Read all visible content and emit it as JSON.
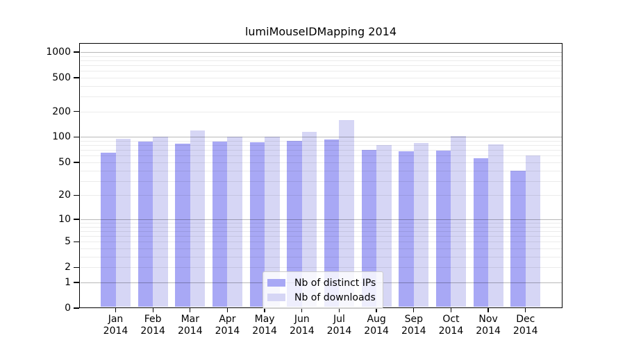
{
  "chart_data": {
    "type": "bar",
    "title": "lumiMouseIDMapping 2014",
    "categories": [
      "Jan 2014",
      "Feb 2014",
      "Mar 2014",
      "Apr 2014",
      "May 2014",
      "Jun 2014",
      "Jul 2014",
      "Aug 2014",
      "Sep 2014",
      "Oct 2014",
      "Nov 2014",
      "Dec 2014"
    ],
    "series": [
      {
        "name": "Nb of distinct IPs",
        "color": "#a8a8f5",
        "values": [
          65,
          88,
          84,
          88,
          86,
          90,
          93,
          71,
          68,
          69,
          56,
          40
        ]
      },
      {
        "name": "Nb of downloads",
        "color": "#d6d6f5",
        "values": [
          95,
          100,
          120,
          100,
          101,
          116,
          160,
          81,
          85,
          103,
          82,
          61
        ]
      }
    ],
    "xlabel": "",
    "ylabel": "",
    "y_axis": {
      "scale": "log1p",
      "ticks": [
        0,
        1,
        2,
        5,
        10,
        20,
        50,
        100,
        200,
        500,
        1000
      ],
      "ylim": [
        0,
        1275
      ]
    },
    "grid": "on",
    "legend_position": "lower-center-inside"
  }
}
